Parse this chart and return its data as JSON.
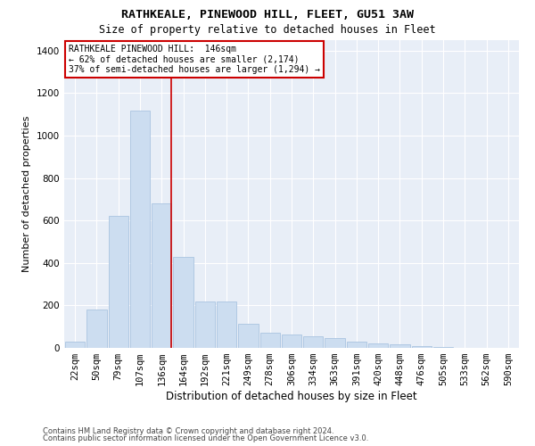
{
  "title": "RATHKEALE, PINEWOOD HILL, FLEET, GU51 3AW",
  "subtitle": "Size of property relative to detached houses in Fleet",
  "xlabel": "Distribution of detached houses by size in Fleet",
  "ylabel": "Number of detached properties",
  "categories": [
    "22sqm",
    "50sqm",
    "79sqm",
    "107sqm",
    "136sqm",
    "164sqm",
    "192sqm",
    "221sqm",
    "249sqm",
    "278sqm",
    "306sqm",
    "334sqm",
    "363sqm",
    "391sqm",
    "420sqm",
    "448sqm",
    "476sqm",
    "505sqm",
    "533sqm",
    "562sqm",
    "590sqm"
  ],
  "values": [
    30,
    180,
    620,
    1120,
    680,
    430,
    220,
    220,
    115,
    70,
    65,
    55,
    45,
    30,
    20,
    15,
    10,
    5,
    2,
    1,
    1
  ],
  "bar_color": "#ccddf0",
  "bar_edge_color": "#aac4e0",
  "vline_x_index": 4,
  "vline_color": "#cc0000",
  "annotation_text": "RATHKEALE PINEWOOD HILL:  146sqm\n← 62% of detached houses are smaller (2,174)\n37% of semi-detached houses are larger (1,294) →",
  "annotation_box_color": "white",
  "annotation_box_edge": "#cc0000",
  "ylim": [
    0,
    1450
  ],
  "yticks": [
    0,
    200,
    400,
    600,
    800,
    1000,
    1200,
    1400
  ],
  "background_color": "#e8eef7",
  "footer_line1": "Contains HM Land Registry data © Crown copyright and database right 2024.",
  "footer_line2": "Contains public sector information licensed under the Open Government Licence v3.0.",
  "title_fontsize": 9.5,
  "subtitle_fontsize": 8.5,
  "xlabel_fontsize": 8.5,
  "ylabel_fontsize": 8,
  "tick_fontsize": 7.5,
  "annotation_fontsize": 7,
  "footer_fontsize": 6
}
